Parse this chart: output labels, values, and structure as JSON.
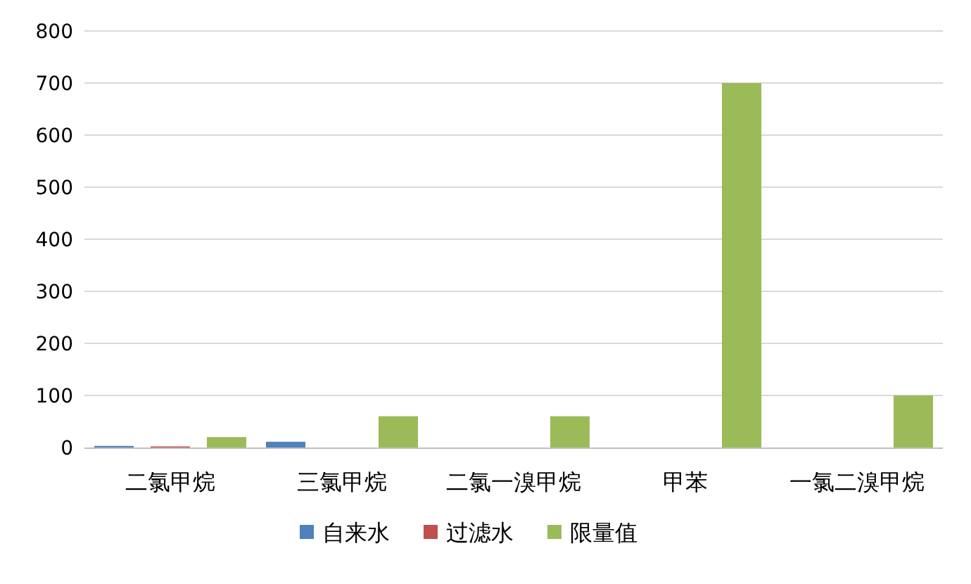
{
  "chart_data": {
    "type": "bar",
    "categories": [
      "二氯甲烷",
      "三氯甲烷",
      "二氯一溴甲烷",
      "甲苯",
      "一氯二溴甲烷"
    ],
    "series": [
      {
        "name": "自来水",
        "color": "#4f81bd",
        "values": [
          3,
          11,
          0,
          0,
          0
        ]
      },
      {
        "name": "过滤水",
        "color": "#c0504d",
        "values": [
          2,
          0,
          0,
          0,
          0
        ]
      },
      {
        "name": "限量值",
        "color": "#9bbb59",
        "values": [
          20,
          60,
          60,
          700,
          100
        ]
      }
    ],
    "ylim": [
      0,
      800
    ],
    "yticks": [
      0,
      100,
      200,
      300,
      400,
      500,
      600,
      700,
      800
    ],
    "grid": "y",
    "legend": "bottom"
  }
}
